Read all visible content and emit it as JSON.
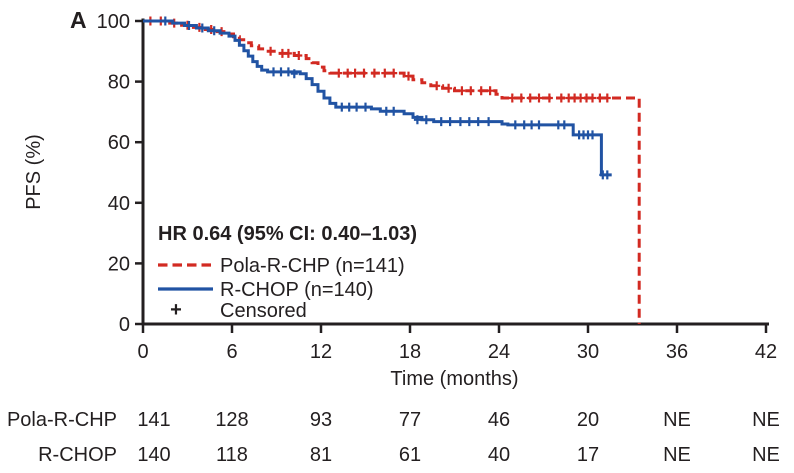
{
  "panel_label": "A",
  "colors": {
    "pola_red": "#d22a22",
    "rchop_blue": "#2153a3",
    "axis_black": "#231f20",
    "background": "#ffffff"
  },
  "chart_data": {
    "type": "line",
    "subtype": "kaplan-meier-step",
    "xlabel": "Time (months)",
    "ylabel": "PFS (%)",
    "xlim": [
      0,
      42
    ],
    "ylim": [
      0,
      100
    ],
    "xticks": [
      0,
      6,
      12,
      18,
      24,
      30,
      36,
      42
    ],
    "yticks": [
      0,
      20,
      40,
      60,
      80,
      100
    ],
    "grid": false,
    "legend_position": "inside-lower-left",
    "hr_annotation": "HR 0.64 (95% CI: 0.40–1.03)",
    "censored_symbol": "+",
    "censored_label": "Censored",
    "series": [
      {
        "name": "Pola-R-CHP (n=141)",
        "color_key": "pola_red",
        "dashed": true,
        "points": [
          [
            0,
            100
          ],
          [
            1.8,
            99.3
          ],
          [
            2.6,
            98.6
          ],
          [
            3.4,
            97.9
          ],
          [
            4.2,
            97.2
          ],
          [
            5.0,
            96.5
          ],
          [
            5.6,
            95.7
          ],
          [
            6.1,
            94.8
          ],
          [
            6.5,
            93.8
          ],
          [
            6.9,
            92.8
          ],
          [
            7.3,
            91.8
          ],
          [
            7.8,
            90.8
          ],
          [
            8.3,
            90.0
          ],
          [
            9.0,
            89.3
          ],
          [
            10.2,
            88.6
          ],
          [
            11.0,
            87.6
          ],
          [
            11.4,
            86.2
          ],
          [
            11.8,
            84.8
          ],
          [
            12.2,
            83.6
          ],
          [
            12.6,
            82.8
          ],
          [
            17.6,
            81.8
          ],
          [
            18.2,
            80.6
          ],
          [
            18.8,
            79.6
          ],
          [
            19.4,
            78.6
          ],
          [
            20.2,
            77.8
          ],
          [
            21.0,
            77.0
          ],
          [
            23.8,
            75.8
          ],
          [
            24.2,
            74.6
          ],
          [
            33.45,
            74.6
          ],
          [
            33.45,
            0
          ]
        ],
        "censors": [
          [
            0.5,
            100
          ],
          [
            1.2,
            100
          ],
          [
            2.1,
            99.3
          ],
          [
            3.0,
            98.6
          ],
          [
            3.8,
            97.9
          ],
          [
            4.6,
            97.2
          ],
          [
            5.3,
            96.5
          ],
          [
            8.6,
            90.0
          ],
          [
            9.4,
            89.3
          ],
          [
            9.8,
            89.3
          ],
          [
            10.5,
            88.6
          ],
          [
            13.2,
            82.8
          ],
          [
            13.8,
            82.8
          ],
          [
            14.3,
            82.8
          ],
          [
            14.9,
            82.8
          ],
          [
            15.6,
            82.8
          ],
          [
            16.3,
            82.8
          ],
          [
            16.9,
            82.8
          ],
          [
            17.9,
            81.8
          ],
          [
            19.8,
            78.6
          ],
          [
            20.6,
            77.8
          ],
          [
            21.5,
            77.0
          ],
          [
            22.1,
            77.0
          ],
          [
            22.8,
            77.0
          ],
          [
            23.4,
            77.0
          ],
          [
            24.9,
            74.6
          ],
          [
            25.5,
            74.6
          ],
          [
            26.1,
            74.6
          ],
          [
            26.7,
            74.6
          ],
          [
            27.4,
            74.6
          ],
          [
            28.2,
            74.6
          ],
          [
            28.7,
            74.6
          ],
          [
            29.1,
            74.6
          ],
          [
            29.5,
            74.6
          ],
          [
            29.9,
            74.6
          ],
          [
            30.3,
            74.6
          ],
          [
            30.8,
            74.6
          ],
          [
            31.3,
            74.6
          ]
        ]
      },
      {
        "name": "R-CHOP (n=140)",
        "color_key": "rchop_blue",
        "dashed": false,
        "points": [
          [
            0,
            100
          ],
          [
            2.0,
            99.3
          ],
          [
            2.8,
            98.5
          ],
          [
            3.6,
            97.7
          ],
          [
            4.4,
            96.8
          ],
          [
            5.2,
            96.0
          ],
          [
            5.8,
            95.0
          ],
          [
            6.2,
            93.6
          ],
          [
            6.5,
            92.0
          ],
          [
            6.8,
            90.2
          ],
          [
            7.1,
            88.4
          ],
          [
            7.4,
            86.6
          ],
          [
            7.7,
            85.0
          ],
          [
            8.0,
            83.8
          ],
          [
            8.4,
            83.2
          ],
          [
            10.6,
            82.6
          ],
          [
            11.0,
            81.0
          ],
          [
            11.4,
            79.0
          ],
          [
            11.8,
            76.8
          ],
          [
            12.2,
            74.6
          ],
          [
            12.6,
            72.8
          ],
          [
            13.0,
            71.6
          ],
          [
            15.4,
            71.0
          ],
          [
            16.0,
            70.2
          ],
          [
            17.6,
            69.4
          ],
          [
            18.2,
            68.2
          ],
          [
            18.8,
            67.4
          ],
          [
            19.6,
            66.8
          ],
          [
            24.2,
            66.0
          ],
          [
            24.6,
            65.7
          ],
          [
            29.0,
            62.4
          ],
          [
            30.9,
            49.2
          ],
          [
            31.6,
            49.2
          ]
        ],
        "censors": [
          [
            1.5,
            100
          ],
          [
            3.1,
            98.5
          ],
          [
            4.0,
            97.7
          ],
          [
            4.8,
            96.8
          ],
          [
            8.8,
            83.2
          ],
          [
            9.3,
            83.2
          ],
          [
            9.8,
            83.2
          ],
          [
            10.2,
            82.6
          ],
          [
            13.4,
            71.6
          ],
          [
            13.9,
            71.6
          ],
          [
            14.4,
            71.6
          ],
          [
            15.0,
            71.6
          ],
          [
            16.4,
            70.2
          ],
          [
            16.9,
            70.2
          ],
          [
            18.5,
            67.4
          ],
          [
            19.1,
            67.4
          ],
          [
            20.1,
            66.8
          ],
          [
            20.7,
            66.8
          ],
          [
            21.4,
            66.8
          ],
          [
            22.0,
            66.8
          ],
          [
            22.6,
            66.8
          ],
          [
            23.3,
            66.8
          ],
          [
            25.1,
            65.7
          ],
          [
            25.7,
            65.7
          ],
          [
            26.2,
            65.7
          ],
          [
            26.7,
            65.7
          ],
          [
            28.0,
            65.7
          ],
          [
            28.4,
            65.7
          ],
          [
            29.4,
            62.4
          ],
          [
            29.7,
            62.4
          ],
          [
            30.0,
            62.4
          ],
          [
            30.3,
            62.4
          ],
          [
            31.0,
            49.2
          ],
          [
            31.3,
            49.2
          ]
        ]
      }
    ]
  },
  "risk_table": {
    "rows": [
      {
        "label": "Pola-R-CHP",
        "color_key": "pola_red",
        "values": [
          "141",
          "128",
          "93",
          "77",
          "46",
          "20",
          "NE",
          "NE"
        ]
      },
      {
        "label": "R-CHOP",
        "color_key": "rchop_blue",
        "values": [
          "140",
          "118",
          "81",
          "61",
          "40",
          "17",
          "NE",
          "NE"
        ]
      }
    ]
  }
}
